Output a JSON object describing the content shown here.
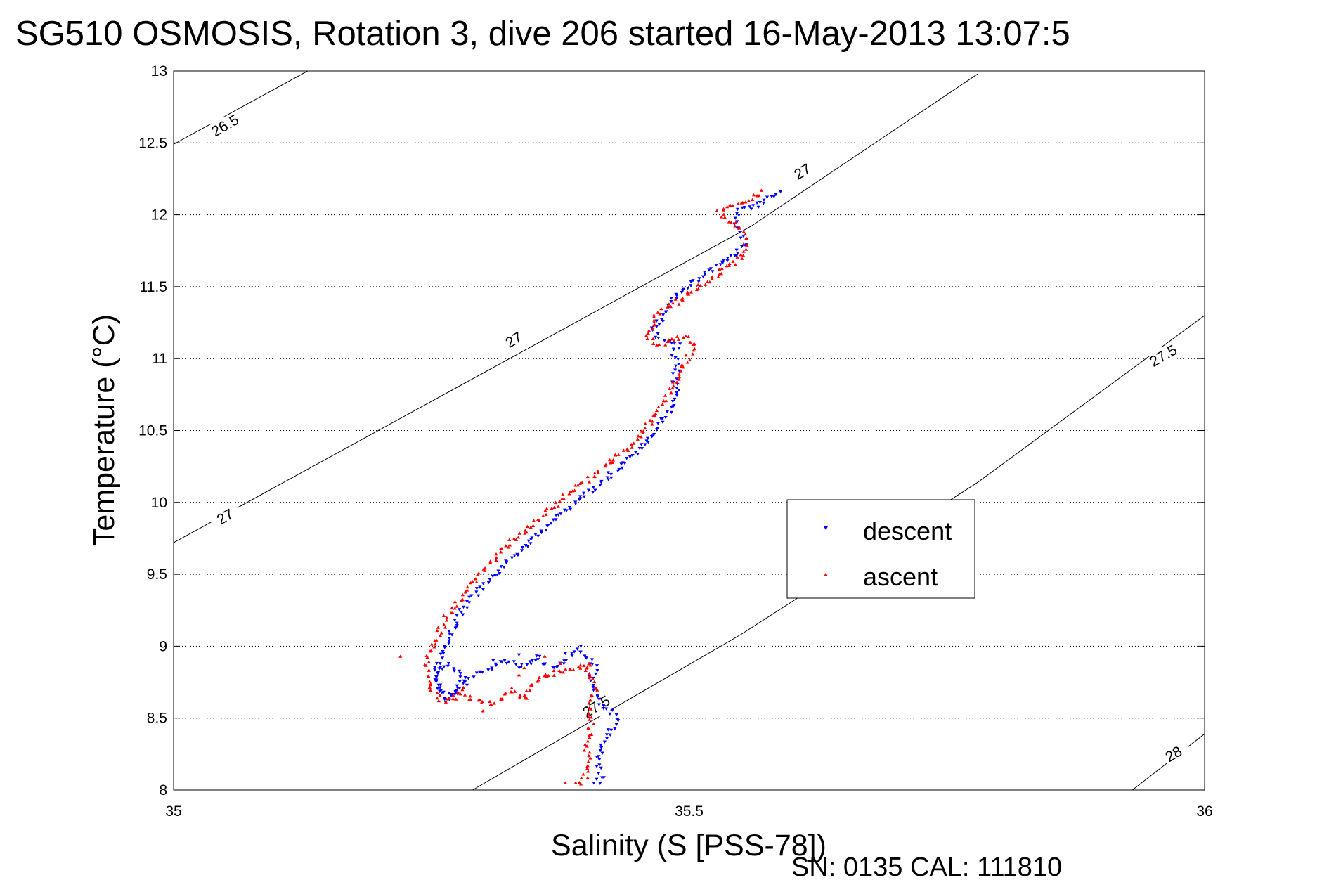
{
  "title": "SG510 OSMOSIS, Rotation 3, dive 206 started 16-May-2013 13:07:5",
  "footer": "SN: 0135  CAL: 111810",
  "colors": {
    "descent": "#0000ff",
    "ascent": "#ff0000",
    "axis": "#000000",
    "grid": "#000000"
  },
  "chart_data": {
    "type": "scatter",
    "xlabel": "Salinity (S [PSS-78])",
    "ylabel": "Temperature (°C)",
    "xlim": [
      35,
      36
    ],
    "ylim": [
      8,
      13
    ],
    "x_ticks": [
      "35",
      "35.5",
      "36"
    ],
    "y_ticks": [
      "8",
      "8.5",
      "9",
      "9.5",
      "10",
      "10.5",
      "11",
      "11.5",
      "12",
      "12.5",
      "13"
    ],
    "grid": true,
    "legend": {
      "position": "center-right",
      "entries": [
        "descent",
        "ascent"
      ]
    },
    "contours": [
      {
        "label": "26.5",
        "points": [
          [
            35.0,
            12.49
          ],
          [
            35.13,
            13.0
          ]
        ]
      },
      {
        "label": "27",
        "points": [
          [
            35.0,
            9.72
          ],
          [
            35.28,
            10.82
          ],
          [
            35.56,
            11.92
          ],
          [
            35.78,
            12.98
          ]
        ]
      },
      {
        "label": "27.5",
        "points": [
          [
            35.29,
            8.0
          ],
          [
            35.55,
            9.08
          ],
          [
            35.78,
            10.14
          ],
          [
            36.0,
            11.3
          ]
        ]
      },
      {
        "label": "28",
        "points": [
          [
            35.93,
            8.0
          ],
          [
            36.0,
            8.39
          ]
        ]
      }
    ],
    "contour_labels": [
      {
        "text": "26.5",
        "x": 35.05,
        "y": 12.62
      },
      {
        "text": "27",
        "x": 35.05,
        "y": 9.9
      },
      {
        "text": "27",
        "x": 35.33,
        "y": 11.13
      },
      {
        "text": "27",
        "x": 35.61,
        "y": 12.3
      },
      {
        "text": "27.5",
        "x": 35.96,
        "y": 11.02
      },
      {
        "text": "27.5",
        "x": 35.41,
        "y": 8.58
      },
      {
        "text": "28",
        "x": 35.97,
        "y": 8.25
      }
    ],
    "series": [
      {
        "name": "descent",
        "path": [
          [
            35.41,
            8.04
          ],
          [
            35.415,
            8.1
          ],
          [
            35.41,
            8.2
          ],
          [
            35.415,
            8.3
          ],
          [
            35.42,
            8.38
          ],
          [
            35.43,
            8.47
          ],
          [
            35.425,
            8.55
          ],
          [
            35.415,
            8.6
          ],
          [
            35.41,
            8.68
          ],
          [
            35.405,
            8.78
          ],
          [
            35.41,
            8.85
          ],
          [
            35.4,
            8.93
          ],
          [
            35.39,
            8.97
          ],
          [
            35.38,
            8.9
          ],
          [
            35.37,
            8.85
          ],
          [
            35.36,
            8.87
          ],
          [
            35.35,
            8.92
          ],
          [
            35.345,
            8.88
          ],
          [
            35.34,
            8.85
          ],
          [
            35.33,
            8.88
          ],
          [
            35.32,
            8.9
          ],
          [
            35.31,
            8.85
          ],
          [
            35.29,
            8.8
          ],
          [
            35.28,
            8.72
          ],
          [
            35.27,
            8.65
          ],
          [
            35.26,
            8.7
          ],
          [
            35.255,
            8.78
          ],
          [
            35.255,
            8.85
          ],
          [
            35.265,
            8.87
          ],
          [
            35.275,
            8.82
          ],
          [
            35.28,
            8.75
          ],
          [
            35.275,
            8.68
          ],
          [
            35.265,
            8.62
          ],
          [
            35.26,
            8.68
          ],
          [
            35.255,
            8.8
          ],
          [
            35.26,
            8.95
          ],
          [
            35.27,
            9.1
          ],
          [
            35.28,
            9.25
          ],
          [
            35.3,
            9.42
          ],
          [
            35.33,
            9.62
          ],
          [
            35.36,
            9.82
          ],
          [
            35.39,
            10.0
          ],
          [
            35.42,
            10.17
          ],
          [
            35.45,
            10.35
          ],
          [
            35.47,
            10.5
          ],
          [
            35.48,
            10.62
          ],
          [
            35.49,
            10.73
          ],
          [
            35.485,
            10.85
          ],
          [
            35.49,
            10.95
          ],
          [
            35.485,
            11.05
          ],
          [
            35.49,
            11.1
          ],
          [
            35.48,
            11.12
          ],
          [
            35.47,
            11.15
          ],
          [
            35.465,
            11.2
          ],
          [
            35.47,
            11.25
          ],
          [
            35.475,
            11.3
          ],
          [
            35.48,
            11.38
          ],
          [
            35.49,
            11.45
          ],
          [
            35.5,
            11.5
          ],
          [
            35.515,
            11.58
          ],
          [
            35.53,
            11.66
          ],
          [
            35.545,
            11.73
          ],
          [
            35.555,
            11.8
          ],
          [
            35.55,
            11.88
          ],
          [
            35.545,
            11.95
          ],
          [
            35.55,
            12.03
          ],
          [
            35.56,
            12.05
          ],
          [
            35.575,
            12.1
          ],
          [
            35.585,
            12.15
          ],
          [
            35.59,
            12.16
          ]
        ],
        "points": [
          [
            35.31,
            8.9
          ],
          [
            35.335,
            8.94
          ],
          [
            35.355,
            8.93
          ],
          [
            35.38,
            8.95
          ],
          [
            35.395,
            9.0
          ]
        ]
      },
      {
        "name": "ascent",
        "path": [
          [
            35.395,
            8.04
          ],
          [
            35.4,
            8.1
          ],
          [
            35.405,
            8.2
          ],
          [
            35.4,
            8.3
          ],
          [
            35.405,
            8.4
          ],
          [
            35.405,
            8.5
          ],
          [
            35.4,
            8.6
          ],
          [
            35.41,
            8.7
          ],
          [
            35.405,
            8.78
          ],
          [
            35.4,
            8.83
          ],
          [
            35.405,
            8.88
          ],
          [
            35.395,
            8.85
          ],
          [
            35.36,
            8.8
          ],
          [
            35.345,
            8.72
          ],
          [
            35.34,
            8.63
          ],
          [
            35.33,
            8.7
          ],
          [
            35.31,
            8.6
          ],
          [
            35.29,
            8.62
          ],
          [
            35.28,
            8.7
          ],
          [
            35.27,
            8.63
          ],
          [
            35.26,
            8.62
          ],
          [
            35.25,
            8.7
          ],
          [
            35.245,
            8.8
          ],
          [
            35.245,
            8.92
          ],
          [
            35.255,
            9.05
          ],
          [
            35.265,
            9.2
          ],
          [
            35.28,
            9.35
          ],
          [
            35.3,
            9.52
          ],
          [
            35.32,
            9.68
          ],
          [
            35.35,
            9.85
          ],
          [
            35.38,
            10.05
          ],
          [
            35.41,
            10.2
          ],
          [
            35.44,
            10.38
          ],
          [
            35.465,
            10.58
          ],
          [
            35.48,
            10.75
          ],
          [
            35.49,
            10.9
          ],
          [
            35.5,
            11.02
          ],
          [
            35.505,
            11.1
          ],
          [
            35.495,
            11.15
          ],
          [
            35.485,
            11.13
          ],
          [
            35.47,
            11.1
          ],
          [
            35.46,
            11.15
          ],
          [
            35.465,
            11.2
          ],
          [
            35.465,
            11.26
          ],
          [
            35.47,
            11.32
          ],
          [
            35.485,
            11.38
          ],
          [
            35.5,
            11.45
          ],
          [
            35.515,
            11.52
          ],
          [
            35.53,
            11.6
          ],
          [
            35.545,
            11.68
          ],
          [
            35.555,
            11.75
          ],
          [
            35.555,
            11.85
          ],
          [
            35.545,
            11.92
          ],
          [
            35.535,
            11.97
          ],
          [
            35.53,
            12.02
          ],
          [
            35.54,
            12.05
          ],
          [
            35.57,
            12.15
          ]
        ],
        "points": [
          [
            35.39,
            8.05
          ],
          [
            35.38,
            8.05
          ],
          [
            35.3,
            8.55
          ],
          [
            35.34,
            8.85
          ],
          [
            35.36,
            8.93
          ],
          [
            35.375,
            8.88
          ],
          [
            35.335,
            8.8
          ],
          [
            35.22,
            8.93
          ],
          [
            35.57,
            12.17
          ]
        ]
      }
    ]
  }
}
